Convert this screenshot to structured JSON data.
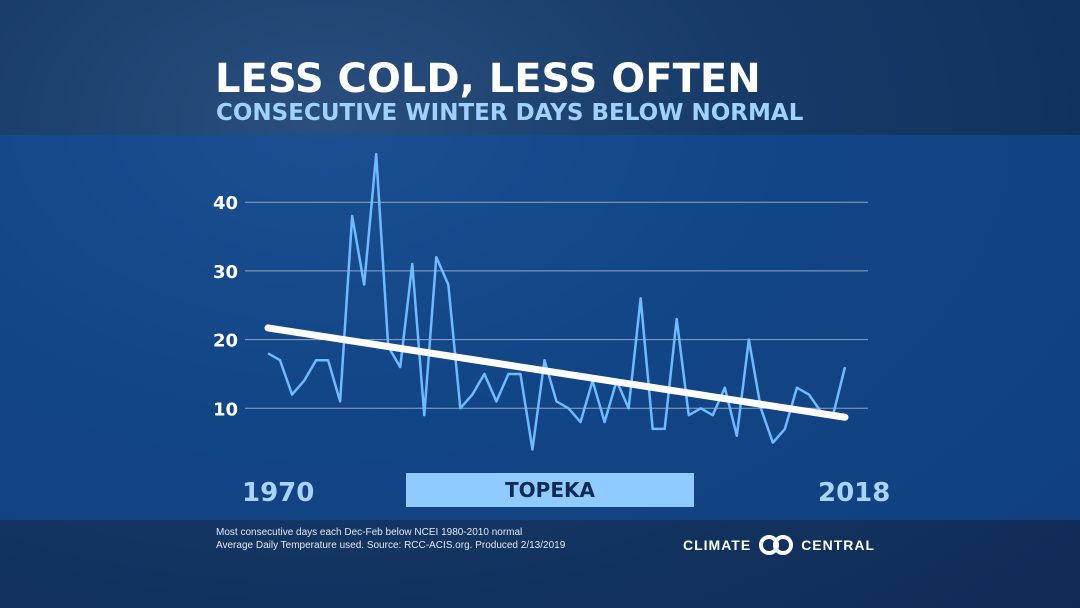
{
  "title": "LESS COLD, LESS OFTEN",
  "subtitle": "CONSECUTIVE WINTER DAYS BELOW NORMAL",
  "location": "TOPEKA",
  "footnote": [
    "Most consecutive days each Dec-Feb below NCEI 1980-2010 normal",
    "Average Daily Temperature used. Source: RCC-ACIS.org. Produced 2/13/2019"
  ],
  "logo": {
    "left": "CLIMATE",
    "right": "CENTRAL"
  },
  "colors": {
    "series": "#6cbcff",
    "trend": "#ffffff",
    "label_bar": "#8fcbff"
  },
  "chart_data": {
    "type": "line",
    "title": "LESS COLD, LESS OFTEN",
    "x_start_label": "1970",
    "x_end_label": "2018",
    "xlim": [
      1970,
      2018
    ],
    "ylim": [
      0,
      47
    ],
    "yticks": [
      10,
      20,
      30,
      40
    ],
    "grid": true,
    "x": [
      1970,
      1971,
      1972,
      1973,
      1974,
      1975,
      1976,
      1977,
      1978,
      1979,
      1980,
      1981,
      1982,
      1983,
      1984,
      1985,
      1986,
      1987,
      1988,
      1989,
      1990,
      1991,
      1992,
      1993,
      1994,
      1995,
      1996,
      1997,
      1998,
      1999,
      2000,
      2001,
      2002,
      2003,
      2004,
      2005,
      2006,
      2007,
      2008,
      2009,
      2010,
      2011,
      2012,
      2013,
      2014,
      2015,
      2016,
      2017,
      2018
    ],
    "values": [
      18,
      17,
      12,
      14,
      17,
      17,
      11,
      38,
      28,
      47,
      19,
      16,
      31,
      9,
      32,
      28,
      10,
      12,
      15,
      11,
      15,
      15,
      4,
      17,
      11,
      10,
      8,
      14,
      8,
      14,
      10,
      26,
      7,
      7,
      23,
      9,
      10,
      9,
      13,
      6,
      20,
      10,
      5,
      7,
      13,
      12,
      9.5,
      9,
      16
    ],
    "trend": {
      "start": [
        1970,
        21.7
      ],
      "end": [
        2018,
        8.7
      ]
    }
  }
}
